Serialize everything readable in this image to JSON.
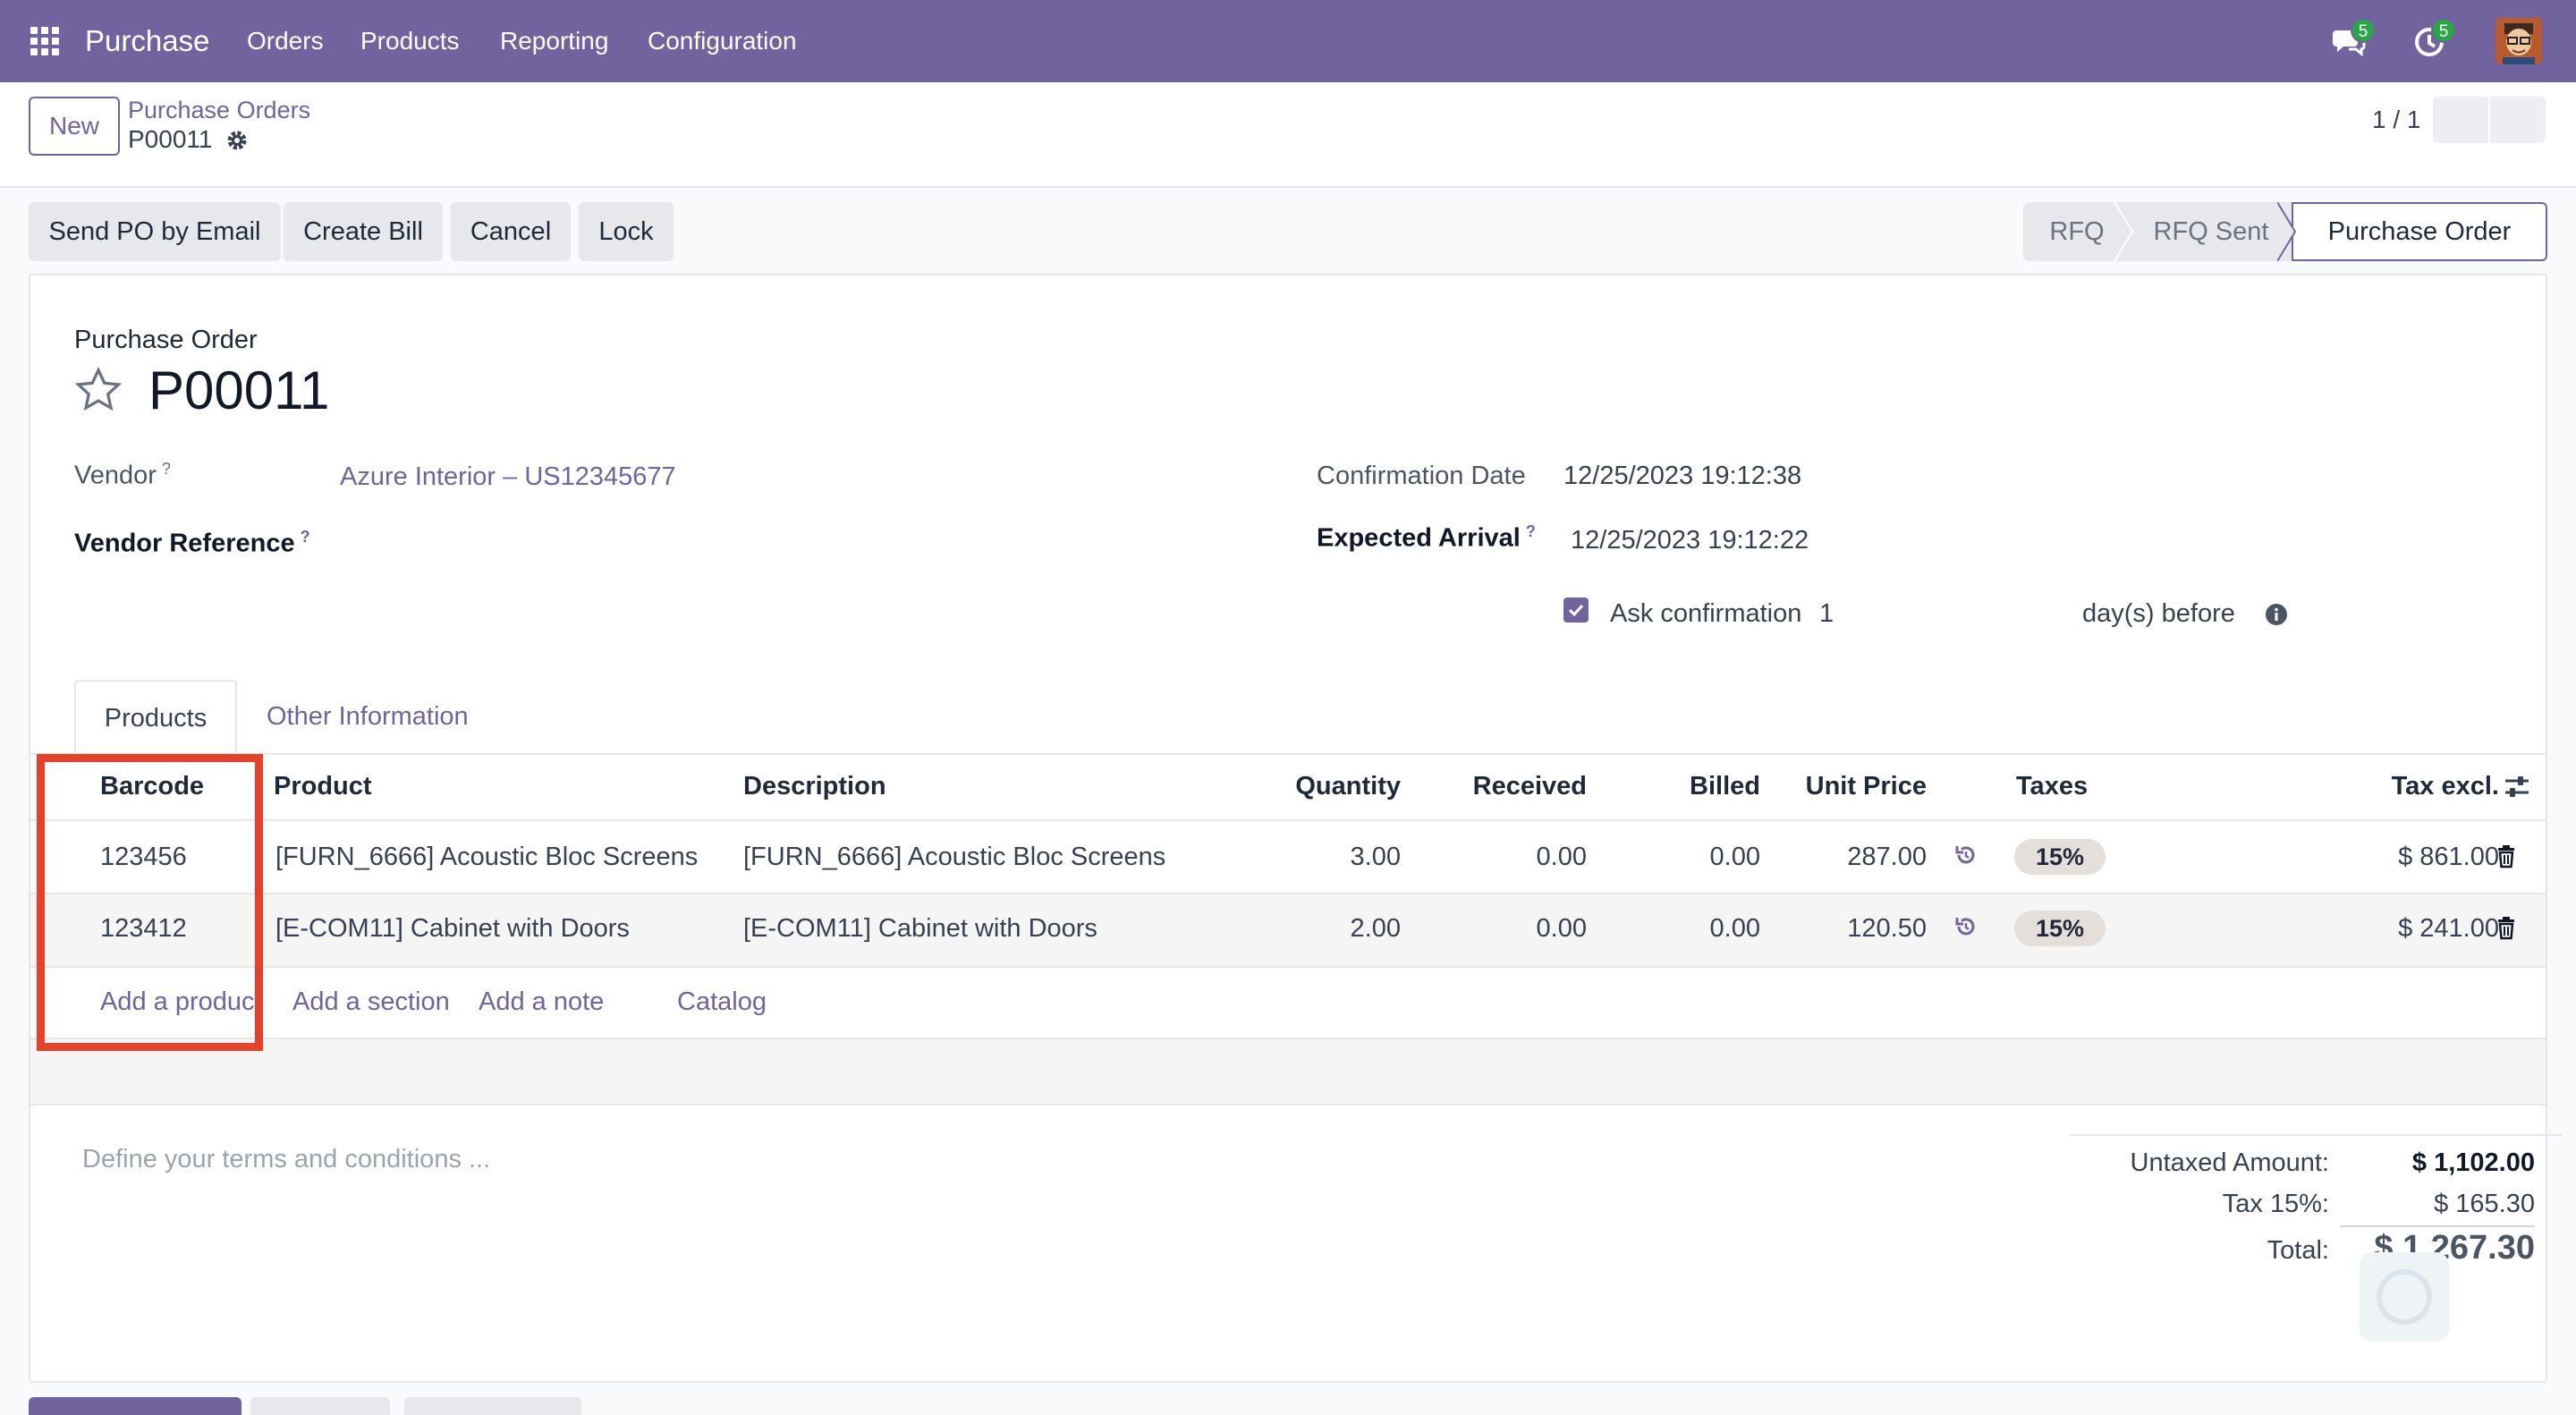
{
  "navbar": {
    "app_name": "Purchase",
    "menus": [
      "Orders",
      "Products",
      "Reporting",
      "Configuration"
    ],
    "messages_badge": "5",
    "activities_badge": "5",
    "bg_color": "#71639e"
  },
  "control_panel": {
    "new_label": "New",
    "breadcrumb_parent": "Purchase Orders",
    "breadcrumb_current": "P00011",
    "pager": "1 / 1"
  },
  "status_bar": {
    "actions": [
      "Send PO by Email",
      "Create Bill",
      "Cancel",
      "Lock"
    ],
    "stages": [
      "RFQ",
      "RFQ Sent",
      "Purchase Order"
    ],
    "active_stage": "Purchase Order"
  },
  "form": {
    "doc_type": "Purchase Order",
    "name": "P00011",
    "vendor_label": "Vendor",
    "vendor_value": "Azure Interior – US12345677",
    "vendor_ref_label": "Vendor Reference",
    "help_mark": "?",
    "confirmation_date_label": "Confirmation Date",
    "confirmation_date_value": "12/25/2023 19:12:38",
    "expected_arrival_label": "Expected Arrival",
    "expected_arrival_value": "12/25/2023 19:12:22",
    "ask_confirmation_label": "Ask confirmation",
    "ask_confirmation_days": "1",
    "days_before_label": "day(s) before"
  },
  "tabs": [
    "Products",
    "Other Information"
  ],
  "lines_table": {
    "headers": [
      "Barcode",
      "Product",
      "Description",
      "Quantity",
      "Received",
      "Billed",
      "Unit Price",
      "Taxes",
      "Tax excl."
    ],
    "rows": [
      {
        "barcode": "123456",
        "product": "[FURN_6666] Acoustic Bloc Screens",
        "description": "[FURN_6666] Acoustic Bloc Screens",
        "quantity": "3.00",
        "received": "0.00",
        "billed": "0.00",
        "unit_price": "287.00",
        "tax": "15%",
        "subtotal": "$ 861.00"
      },
      {
        "barcode": "123412",
        "product": "[E-COM11] Cabinet with Doors",
        "description": "[E-COM11] Cabinet with Doors",
        "quantity": "2.00",
        "received": "0.00",
        "billed": "0.00",
        "unit_price": "120.50",
        "tax": "15%",
        "subtotal": "$ 241.00"
      }
    ],
    "add_links": [
      "Add a product",
      "Add a section",
      "Add a note",
      "Catalog"
    ]
  },
  "terms_placeholder": "Define your terms and conditions ...",
  "totals": {
    "untaxed_label": "Untaxed Amount:",
    "untaxed_value": "$ 1,102.00",
    "tax_label": "Tax 15%:",
    "tax_value": "$ 165.30",
    "total_label": "Total:",
    "total_value": "$ 1,267.30"
  },
  "highlight_color": "#e8412a"
}
